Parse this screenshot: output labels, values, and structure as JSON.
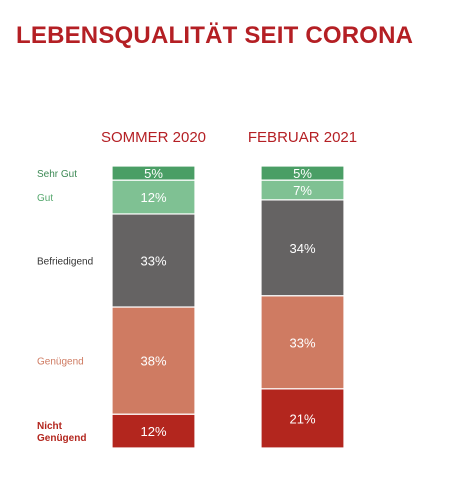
{
  "title": "LEBENSQUALITÄT SEIT CORONA",
  "chart_data": {
    "type": "bar",
    "stacked": true,
    "title": "LEBENSQUALITÄT SEIT CORONA",
    "categories": [
      "SOMMER 2020",
      "FEBRUAR 2021"
    ],
    "series": [
      {
        "name": "Nicht Genügend",
        "label_lines": [
          "Nicht",
          "Genügend"
        ],
        "values": [
          12,
          21
        ],
        "value_labels": [
          "12%",
          "21%"
        ],
        "color": "#b3261e",
        "label_color": "#b3261e"
      },
      {
        "name": "Genügend",
        "label_lines": [
          "Genügend"
        ],
        "values": [
          38,
          33
        ],
        "value_labels": [
          "38%",
          "33%"
        ],
        "color": "#cf7b62",
        "label_color": "#cf7b62"
      },
      {
        "name": "Befriedigend",
        "label_lines": [
          "Befriedigend"
        ],
        "values": [
          33,
          34
        ],
        "value_labels": [
          "33%",
          "34%"
        ],
        "color": "#656363",
        "label_color": "#333333"
      },
      {
        "name": "Gut",
        "label_lines": [
          "Gut"
        ],
        "values": [
          12,
          7
        ],
        "value_labels": [
          "12%",
          "7%"
        ],
        "color": "#7fc193",
        "label_color": "#56a86e"
      },
      {
        "name": "Sehr Gut",
        "label_lines": [
          "Sehr Gut"
        ],
        "values": [
          5,
          5
        ],
        "value_labels": [
          "5%",
          "5%"
        ],
        "color": "#4a9e65",
        "label_color": "#3d8a55"
      }
    ],
    "title_color": "#b41f24",
    "legend": "left"
  }
}
